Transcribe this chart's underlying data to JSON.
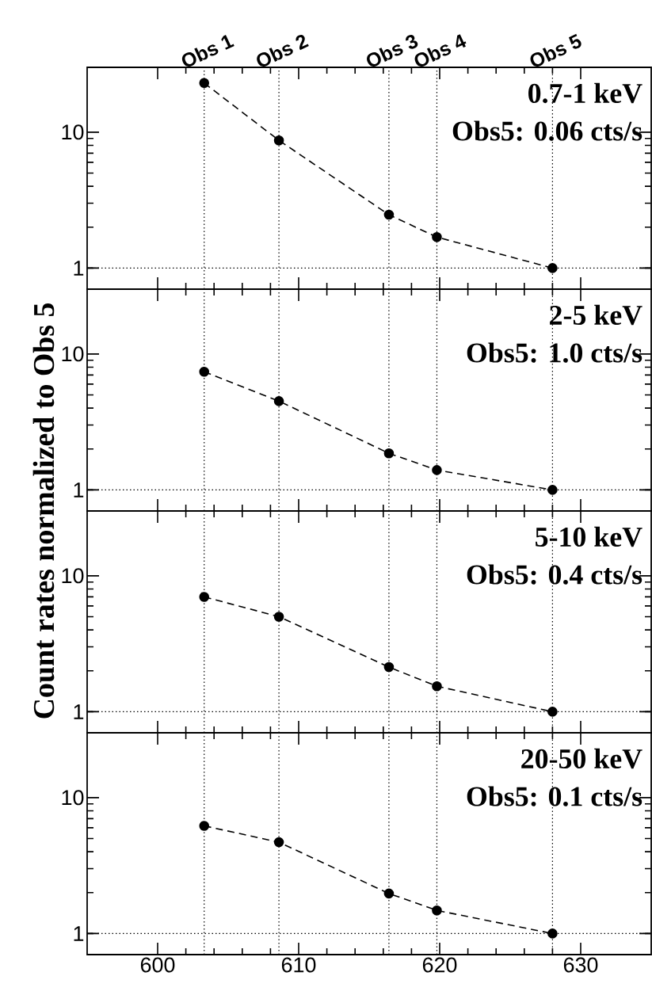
{
  "chart_data": [
    {
      "type": "line",
      "ylabel": "Count rates normalized to Obs 5",
      "x": [
        603.3,
        608.6,
        616.4,
        619.8,
        628.0
      ],
      "series": [
        {
          "color": "#000000",
          "values": [
            23,
            8.7,
            2.47,
            1.69,
            1.0
          ]
        }
      ],
      "xlim": [
        595,
        635
      ],
      "xticks": [
        600,
        610,
        620,
        630
      ],
      "ylim": [
        0.7,
        30
      ],
      "yticks": [
        1,
        10
      ],
      "log": "y",
      "marker": "circle",
      "line_style": "dashed",
      "tick_labels": "y",
      "annotations": [
        "0.7-1 keV",
        "Obs5: 0.06 cts/s"
      ],
      "ref_lines": [
        {
          "axis": "x",
          "value": 603.3,
          "label": "Obs 1",
          "line_style": "dotted"
        },
        {
          "axis": "x",
          "value": 608.6,
          "label": "Obs 2",
          "line_style": "dotted"
        },
        {
          "axis": "x",
          "value": 616.4,
          "label": "Obs 3",
          "line_style": "dotted"
        },
        {
          "axis": "x",
          "value": 619.8,
          "label": "Obs 4",
          "line_style": "dotted"
        },
        {
          "axis": "x",
          "value": 628.0,
          "label": "Obs 5",
          "line_style": "dotted"
        },
        {
          "axis": "y",
          "value": 1,
          "line_style": "dotted"
        }
      ]
    },
    {
      "type": "line",
      "x": [
        603.3,
        608.6,
        616.4,
        619.8,
        628.0
      ],
      "series": [
        {
          "color": "#000000",
          "values": [
            7.4,
            4.5,
            1.86,
            1.4,
            1.0
          ]
        }
      ],
      "xlim": [
        595,
        635
      ],
      "xticks": [
        600,
        610,
        620,
        630
      ],
      "ylim": [
        0.7,
        30
      ],
      "yticks": [
        1,
        10
      ],
      "log": "y",
      "marker": "circle",
      "line_style": "dashed",
      "tick_labels": "y",
      "annotations": [
        "2-5 keV",
        "Obs5: 1.0 cts/s"
      ],
      "ref_lines": [
        {
          "axis": "x",
          "value": 603.3,
          "line_style": "dotted"
        },
        {
          "axis": "x",
          "value": 608.6,
          "line_style": "dotted"
        },
        {
          "axis": "x",
          "value": 616.4,
          "line_style": "dotted"
        },
        {
          "axis": "x",
          "value": 619.8,
          "line_style": "dotted"
        },
        {
          "axis": "x",
          "value": 628.0,
          "line_style": "dotted"
        },
        {
          "axis": "y",
          "value": 1,
          "line_style": "dotted"
        }
      ]
    },
    {
      "type": "line",
      "x": [
        603.3,
        608.6,
        616.4,
        619.8,
        628.0
      ],
      "series": [
        {
          "color": "#000000",
          "values": [
            7.0,
            5.0,
            2.13,
            1.54,
            1.0
          ]
        }
      ],
      "xlim": [
        595,
        635
      ],
      "xticks": [
        600,
        610,
        620,
        630
      ],
      "ylim": [
        0.7,
        30
      ],
      "yticks": [
        1,
        10
      ],
      "log": "y",
      "marker": "circle",
      "line_style": "dashed",
      "tick_labels": "y",
      "annotations": [
        "5-10 keV",
        "Obs5: 0.4 cts/s"
      ],
      "ref_lines": [
        {
          "axis": "x",
          "value": 603.3,
          "line_style": "dotted"
        },
        {
          "axis": "x",
          "value": 608.6,
          "line_style": "dotted"
        },
        {
          "axis": "x",
          "value": 616.4,
          "line_style": "dotted"
        },
        {
          "axis": "x",
          "value": 619.8,
          "line_style": "dotted"
        },
        {
          "axis": "x",
          "value": 628.0,
          "line_style": "dotted"
        },
        {
          "axis": "y",
          "value": 1,
          "line_style": "dotted"
        }
      ]
    },
    {
      "type": "line",
      "x": [
        603.3,
        608.6,
        616.4,
        619.8,
        628.0
      ],
      "series": [
        {
          "color": "#000000",
          "values": [
            6.2,
            4.7,
            1.97,
            1.48,
            1.0
          ]
        }
      ],
      "xlim": [
        595,
        635
      ],
      "xticks": [
        600,
        610,
        620,
        630
      ],
      "ylim": [
        0.7,
        30
      ],
      "yticks": [
        1,
        10
      ],
      "log": "y",
      "marker": "circle",
      "line_style": "dashed",
      "annotations": [
        "20-50 keV",
        "Obs5: 0.1 cts/s"
      ],
      "ref_lines": [
        {
          "axis": "x",
          "value": 603.3,
          "line_style": "dotted"
        },
        {
          "axis": "x",
          "value": 608.6,
          "line_style": "dotted"
        },
        {
          "axis": "x",
          "value": 616.4,
          "line_style": "dotted"
        },
        {
          "axis": "x",
          "value": 619.8,
          "line_style": "dotted"
        },
        {
          "axis": "x",
          "value": 628.0,
          "line_style": "dotted"
        },
        {
          "axis": "y",
          "value": 1,
          "line_style": "dotted"
        }
      ]
    }
  ]
}
